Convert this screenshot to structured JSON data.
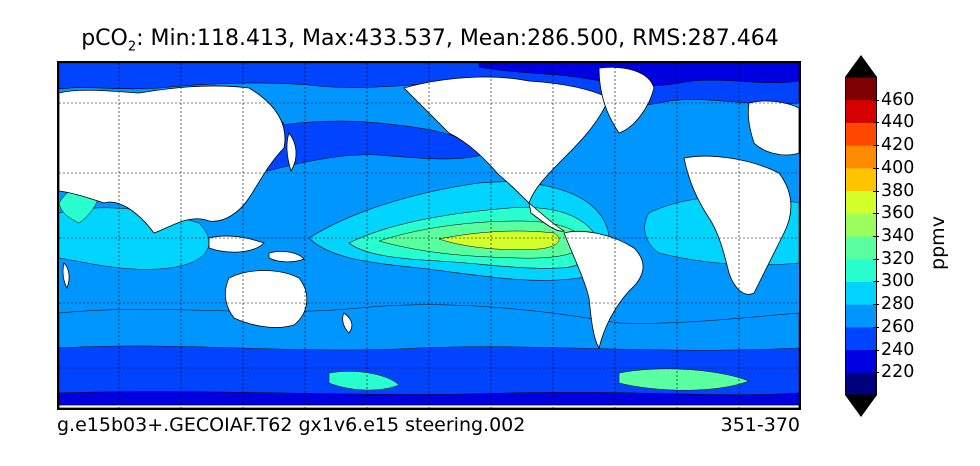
{
  "title": {
    "prefix": "pCO",
    "subscript": "2",
    "stats": ": Min:118.413, Max:433.537, Mean:286.500, RMS:287.464"
  },
  "caption": {
    "left": "g.e15b03+.GECOIAF.T62 gx1v6.e15 steering.002",
    "right": "351-370"
  },
  "colorbar": {
    "units": "ppmv",
    "levels": [
      200,
      220,
      240,
      260,
      280,
      300,
      320,
      340,
      360,
      380,
      400,
      420,
      440,
      460,
      480
    ],
    "tick_labels": [
      "220",
      "240",
      "260",
      "280",
      "300",
      "320",
      "340",
      "360",
      "380",
      "400",
      "420",
      "440",
      "460"
    ],
    "colors": [
      "#00007f",
      "#0000e1",
      "#0044ff",
      "#0096ff",
      "#00d4ff",
      "#29ffce",
      "#5affa0",
      "#9aff5c",
      "#d4ff2a",
      "#ffc400",
      "#ff8c00",
      "#ff4800",
      "#d60000",
      "#7f0000"
    ],
    "under_color": "#000000",
    "over_color": "#000000"
  },
  "map": {
    "projection": "cylindrical",
    "grid": true,
    "land_color": "#ffffff",
    "ocean_background": "#0096ff"
  }
}
